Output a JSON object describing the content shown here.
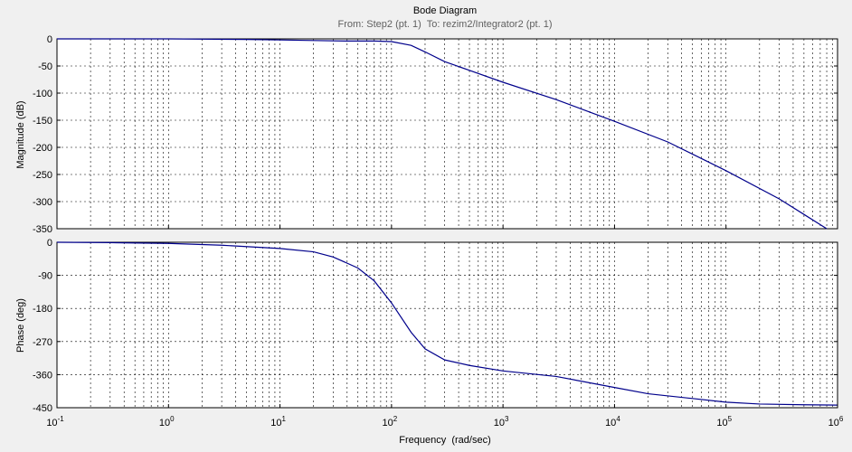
{
  "window": {
    "background": "#f0f0f0",
    "axes_background": "#ffffff",
    "line_color": "#00008b"
  },
  "chart_data": {
    "type": "line",
    "title": "Bode Diagram",
    "subtitle": "From: Step2 (pt. 1)  To: rezim2/Integrator2 (pt. 1)",
    "xlabel": "Frequency  (rad/sec)",
    "xscale": "log",
    "xlim": [
      0.1,
      1000000
    ],
    "xtick_labels": [
      {
        "base": "10",
        "exp": "-1"
      },
      {
        "base": "10",
        "exp": "0"
      },
      {
        "base": "10",
        "exp": "1"
      },
      {
        "base": "10",
        "exp": "2"
      },
      {
        "base": "10",
        "exp": "3"
      },
      {
        "base": "10",
        "exp": "4"
      },
      {
        "base": "10",
        "exp": "5"
      },
      {
        "base": "10",
        "exp": "6"
      }
    ],
    "grid": true,
    "panels": [
      {
        "name": "magnitude",
        "ylabel": "Magnitude (dB)",
        "ylim": [
          -350,
          0
        ],
        "yticks": [
          0,
          -50,
          -100,
          -150,
          -200,
          -250,
          -300,
          -350
        ],
        "ytick_labels": [
          "0",
          "-50",
          "-100",
          "-150",
          "-200",
          "-250",
          "-300",
          "-350"
        ],
        "series": [
          {
            "x": [
              0.1,
              1,
              5,
              10,
              20,
              40,
              70,
              100,
              150,
              200,
              300,
              500,
              1000,
              3000,
              10000,
              30000,
              100000,
              300000,
              800000
            ],
            "y": [
              0,
              0,
              -1,
              -2,
              -3,
              -4,
              -4,
              -5,
              -12,
              -24,
              -42,
              -58,
              -80,
              -112,
              -152,
              -190,
              -243,
              -295,
              -350
            ]
          }
        ]
      },
      {
        "name": "phase",
        "ylabel": "Phase (deg)",
        "ylim": [
          -450,
          0
        ],
        "yticks": [
          0,
          -90,
          -180,
          -270,
          -360,
          -450
        ],
        "ytick_labels": [
          "0",
          "-90",
          "-180",
          "-270",
          "-360",
          "-450"
        ],
        "series": [
          {
            "x": [
              0.1,
              0.3,
              1,
              3,
              10,
              20,
              30,
              50,
              70,
              100,
              150,
              200,
              300,
              500,
              1000,
              3000,
              10000,
              20000,
              50000,
              100000,
              200000,
              500000,
              1000000
            ],
            "y": [
              0,
              -1,
              -3,
              -8,
              -17,
              -26,
              -40,
              -70,
              -105,
              -165,
              -245,
              -290,
              -320,
              -335,
              -350,
              -365,
              -395,
              -412,
              -425,
              -435,
              -440,
              -442,
              -443
            ]
          }
        ]
      }
    ]
  }
}
